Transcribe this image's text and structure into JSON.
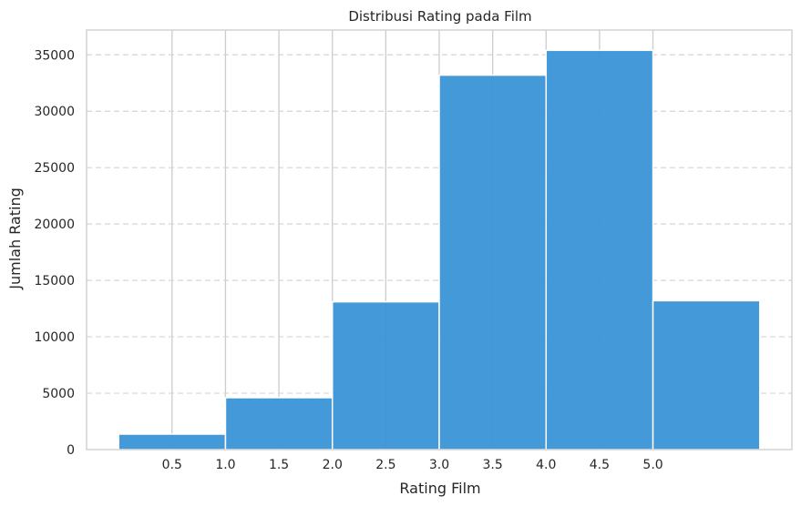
{
  "chart_data": {
    "type": "bar",
    "title": "Distribusi Rating pada Film",
    "xlabel": "Rating Film",
    "ylabel": "Jumlah Rating",
    "bins": [
      {
        "start": 0.0,
        "end": 1.0,
        "value": 1370
      },
      {
        "start": 1.0,
        "end": 2.0,
        "value": 4600
      },
      {
        "start": 2.0,
        "end": 3.0,
        "value": 13100
      },
      {
        "start": 3.0,
        "end": 4.0,
        "value": 33200
      },
      {
        "start": 4.0,
        "end": 5.0,
        "value": 35400
      },
      {
        "start": 5.0,
        "end": 6.0,
        "value": 13200
      }
    ],
    "x_ticks": [
      0.5,
      1.0,
      1.5,
      2.0,
      2.5,
      3.0,
      3.5,
      4.0,
      4.5,
      5.0
    ],
    "x_tick_labels": [
      "0.5",
      "1.0",
      "1.5",
      "2.0",
      "2.5",
      "3.0",
      "3.5",
      "4.0",
      "4.5",
      "5.0"
    ],
    "y_ticks": [
      0,
      5000,
      10000,
      15000,
      20000,
      25000,
      30000,
      35000
    ],
    "y_tick_labels": [
      "0",
      "5000",
      "10000",
      "15000",
      "20000",
      "25000",
      "30000",
      "35000"
    ],
    "xlim": [
      -0.3,
      6.3
    ],
    "ylim": [
      0,
      37200
    ],
    "grid": true,
    "bar_color": "#3a94d7",
    "bar_edge_color": "#ffffff",
    "grid_color": "#d4d4dc",
    "vertical_grid_color": "#cccccc",
    "axis_color": "#cccccc"
  }
}
